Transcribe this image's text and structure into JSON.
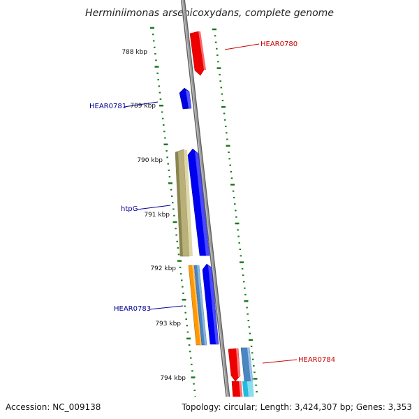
{
  "title": "Herminiimonas arsenicoxydans, complete genome",
  "footer": {
    "accession": "Accession: NC_009138",
    "summary": "Topology: circular; Length: 3,424,307 bp; Genes: 3,353"
  },
  "scale_labels": [
    "788 kbp",
    "789 kbp",
    "790 kbp",
    "791 kbp",
    "792 kbp",
    "793 kbp",
    "794 kbp"
  ],
  "gene_labels": [
    {
      "id": "hear0780",
      "text": "HEAR0780",
      "color": "#cc0000"
    },
    {
      "id": "hear0781",
      "text": "HEAR0781",
      "color": "#000099"
    },
    {
      "id": "htpg",
      "text": "htpG",
      "color": "#000099"
    },
    {
      "id": "hear0783",
      "text": "HEAR0783",
      "color": "#000099"
    },
    {
      "id": "hear0784",
      "text": "HEAR0784",
      "color": "#cc0000"
    }
  ],
  "colors": {
    "backbone": "#8a8a8a",
    "tick": "#1a7a1a",
    "forward_gene": "#ff0000",
    "reverse_gene": "#0000ff",
    "htpG_gene": "#c8c088",
    "orange_gene": "#ff9900",
    "steel_gene": "#4a86c0",
    "cyan_gene": "#33ccdd"
  }
}
